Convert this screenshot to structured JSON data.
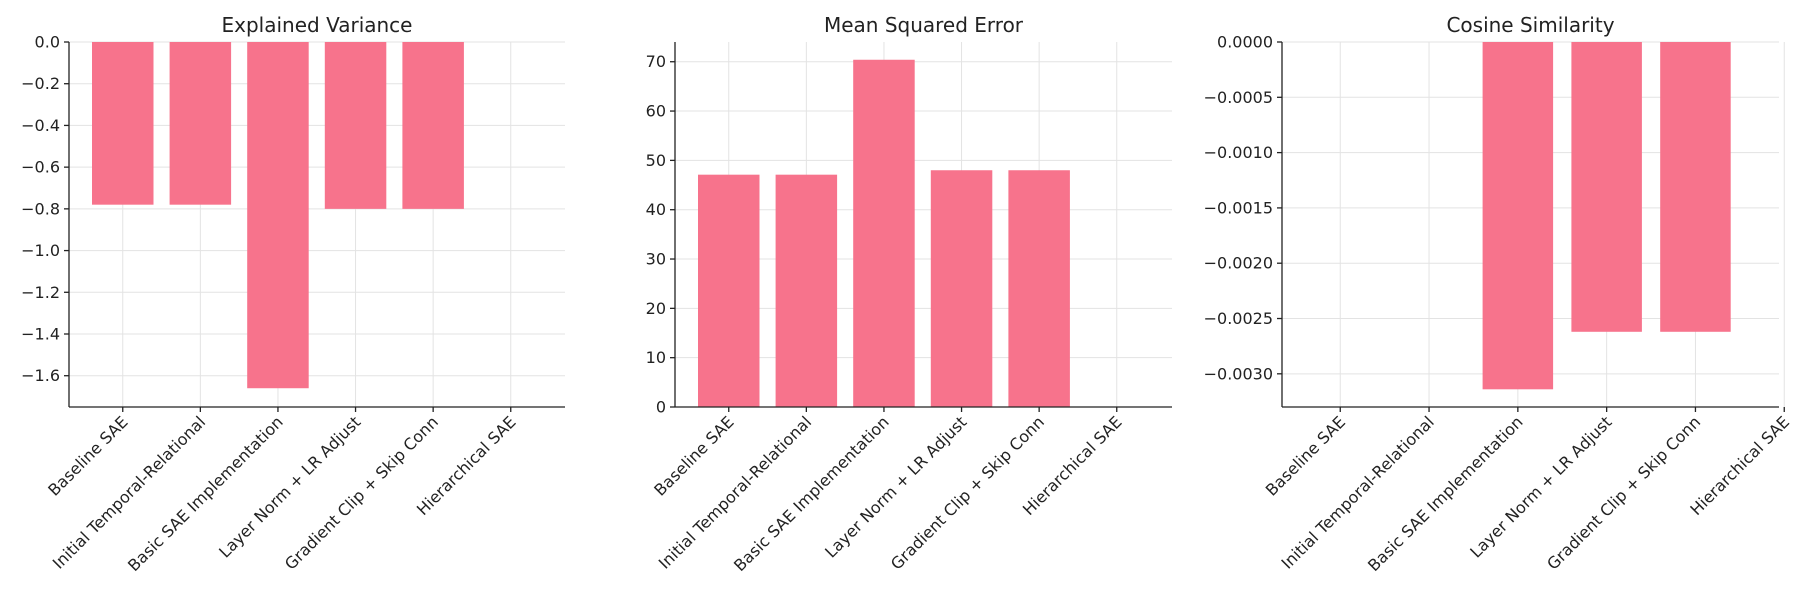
{
  "chart_data": [
    {
      "type": "bar",
      "title": "Explained Variance",
      "categories": [
        "Baseline SAE",
        "Initial Temporal-Relational",
        "Basic SAE Implementation",
        "Layer Norm + LR Adjust",
        "Gradient Clip + Skip Conn",
        "Hierarchical SAE"
      ],
      "values": [
        -0.78,
        -0.78,
        -1.66,
        -0.8,
        -0.8,
        null
      ],
      "ylim": [
        -1.75,
        0.0
      ],
      "yticks": [
        0.0,
        -0.2,
        -0.4,
        -0.6,
        -0.8,
        -1.0,
        -1.2,
        -1.4,
        -1.6
      ],
      "ytick_labels": [
        "0.0",
        "−0.2",
        "−0.4",
        "−0.6",
        "−0.8",
        "−1.0",
        "−1.2",
        "−1.4",
        "−1.6"
      ],
      "grid": true,
      "bar_color": "#f7738c"
    },
    {
      "type": "bar",
      "title": "Mean Squared Error",
      "categories": [
        "Baseline SAE",
        "Initial Temporal-Relational",
        "Basic SAE Implementation",
        "Layer Norm + LR Adjust",
        "Gradient Clip + Skip Conn",
        "Hierarchical SAE"
      ],
      "values": [
        47.1,
        47.1,
        70.4,
        48.0,
        48.0,
        null
      ],
      "ylim": [
        0,
        74
      ],
      "yticks": [
        0,
        10,
        20,
        30,
        40,
        50,
        60,
        70
      ],
      "ytick_labels": [
        "0",
        "10",
        "20",
        "30",
        "40",
        "50",
        "60",
        "70"
      ],
      "grid": true,
      "bar_color": "#f7738c"
    },
    {
      "type": "bar",
      "title": "Cosine Similarity",
      "categories": [
        "Baseline SAE",
        "Initial Temporal-Relational",
        "Basic SAE Implementation",
        "Layer Norm + LR Adjust",
        "Gradient Clip + Skip Conn",
        "Hierarchical SAE"
      ],
      "values": [
        null,
        null,
        -0.00314,
        -0.00262,
        -0.00262,
        null
      ],
      "ylim": [
        -0.0033,
        0.0
      ],
      "yticks": [
        0.0,
        -0.0005,
        -0.001,
        -0.0015,
        -0.002,
        -0.0025,
        -0.003
      ],
      "ytick_labels": [
        "0.0000",
        "−0.0005",
        "−0.0010",
        "−0.0015",
        "−0.0020",
        "−0.0025",
        "−0.0030"
      ],
      "grid": true,
      "bar_color": "#f7738c"
    }
  ]
}
